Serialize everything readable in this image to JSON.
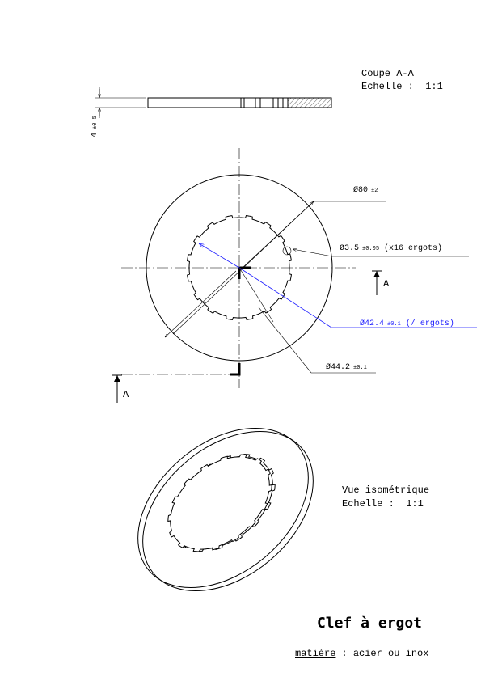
{
  "section_view": {
    "title": "Coupe A-A",
    "scale": "Echelle :  1:1",
    "thickness": "4",
    "thickness_tol": "±0.5"
  },
  "front_view": {
    "outer_dia": "Ø80",
    "outer_tol": "±2",
    "lug_dia": "Ø3.5",
    "lug_tol": "±0.05",
    "lug_note": "(x16 ergots)",
    "lug_circle_dia": "Ø42.4",
    "lug_circle_tol": "±0.1",
    "lug_circle_note": "(/ ergots)",
    "bore_dia": "Ø44.2",
    "bore_tol": "±0.1",
    "section_marks": [
      "A",
      "A"
    ]
  },
  "iso_view": {
    "title": "Vue isométrique",
    "scale": "Echelle :  1:1"
  },
  "title_block": {
    "title": "Clef à ergot",
    "material_label": "matière",
    "material_value": ": acier ou inox"
  }
}
